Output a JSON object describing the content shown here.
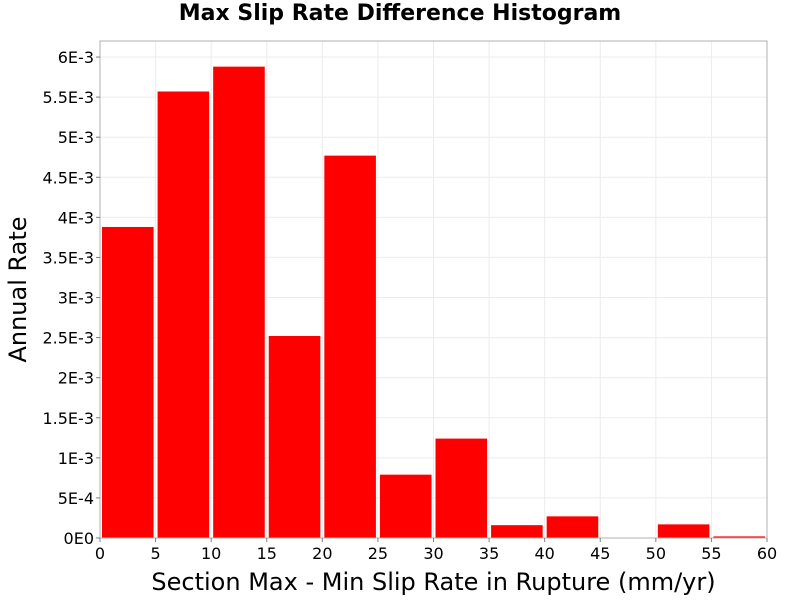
{
  "chart_data": {
    "type": "bar",
    "title": "Max Slip Rate Difference Histogram",
    "xlabel": "Section Max - Min Slip Rate in Rupture (mm/yr)",
    "ylabel": "Annual Rate",
    "bin_width": 5,
    "bins": [
      {
        "x0": 0,
        "x1": 5,
        "value": 0.00388
      },
      {
        "x0": 5,
        "x1": 10,
        "value": 0.00557
      },
      {
        "x0": 10,
        "x1": 15,
        "value": 0.00588
      },
      {
        "x0": 15,
        "x1": 20,
        "value": 0.00252
      },
      {
        "x0": 20,
        "x1": 25,
        "value": 0.00477
      },
      {
        "x0": 25,
        "x1": 30,
        "value": 0.00079
      },
      {
        "x0": 30,
        "x1": 35,
        "value": 0.00124
      },
      {
        "x0": 35,
        "x1": 40,
        "value": 0.00016
      },
      {
        "x0": 40,
        "x1": 45,
        "value": 0.00027
      },
      {
        "x0": 45,
        "x1": 50,
        "value": 0.0
      },
      {
        "x0": 50,
        "x1": 55,
        "value": 0.00017
      },
      {
        "x0": 55,
        "x1": 60,
        "value": 2e-05
      }
    ],
    "xlim": [
      0,
      60
    ],
    "ylim": [
      0,
      0.0062
    ],
    "x_ticks": [
      0,
      5,
      10,
      15,
      20,
      25,
      30,
      35,
      40,
      45,
      50,
      55,
      60
    ],
    "x_tick_labels": [
      "0",
      "5",
      "10",
      "15",
      "20",
      "25",
      "30",
      "35",
      "40",
      "45",
      "50",
      "55",
      "60"
    ],
    "y_ticks": [
      0,
      0.0005,
      0.001,
      0.0015,
      0.002,
      0.0025,
      0.003,
      0.0035,
      0.004,
      0.0045,
      0.005,
      0.0055,
      0.006
    ],
    "y_tick_labels": [
      "0E0",
      "5E-4",
      "1E-3",
      "1.5E-3",
      "2E-3",
      "2.5E-3",
      "3E-3",
      "3.5E-3",
      "4E-3",
      "4.5E-3",
      "5E-3",
      "5.5E-3",
      "6E-3"
    ],
    "grid": true,
    "colors": {
      "bar": "#ff0000",
      "grid": "#ececec",
      "frame": "#b0b0b0"
    }
  }
}
